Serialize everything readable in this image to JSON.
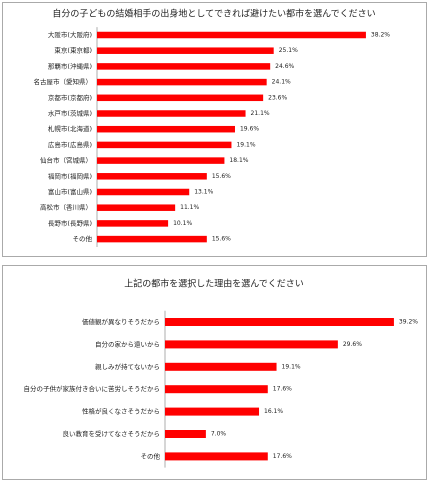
{
  "chart_data": [
    {
      "type": "bar",
      "orientation": "horizontal",
      "title": "自分の子どもの結婚相手の出身地としてできれば避けたい都市を選んでください",
      "categories": [
        "大阪市(大阪府)",
        "東京(東京都)",
        "那覇市(沖縄県)",
        "名古屋市（愛知県）",
        "京都市(京都府)",
        "水戸市(茨城県)",
        "札幌市(北海道)",
        "広島市(広島県)",
        "仙台市（宮城県）",
        "福岡市(福岡県)",
        "富山市(富山県)",
        "高松市（香川県）",
        "長野市(長野県)",
        "その他"
      ],
      "values": [
        38.2,
        25.1,
        24.6,
        24.1,
        23.6,
        21.1,
        19.6,
        19.1,
        18.1,
        15.6,
        13.1,
        11.1,
        10.1,
        15.6
      ],
      "value_labels": [
        "38.2%",
        "25.1%",
        "24.6%",
        "24.1%",
        "23.6%",
        "21.1%",
        "19.6%",
        "19.1%",
        "18.1%",
        "15.6%",
        "13.1%",
        "11.1%",
        "10.1%",
        "15.6%"
      ],
      "color": "#ff0000"
    },
    {
      "type": "bar",
      "orientation": "horizontal",
      "title": "上記の都市を選択した理由を選んでください",
      "categories": [
        "価値観が異なりそうだから",
        "自分の家から遠いから",
        "親しみが持てないから",
        "自分の子供が家族付き合いに苦労しそうだから",
        "性格が良くなさそうだから",
        "良い教育を受けてなさそうだから",
        "その他"
      ],
      "values": [
        39.2,
        29.6,
        19.1,
        17.6,
        16.1,
        7,
        17.6
      ],
      "value_labels": [
        "39.2%",
        "29.6%",
        "19.1%",
        "17.6%",
        "16.1%",
        "7.0%",
        "17.6%"
      ],
      "color": "#ff0000"
    }
  ]
}
